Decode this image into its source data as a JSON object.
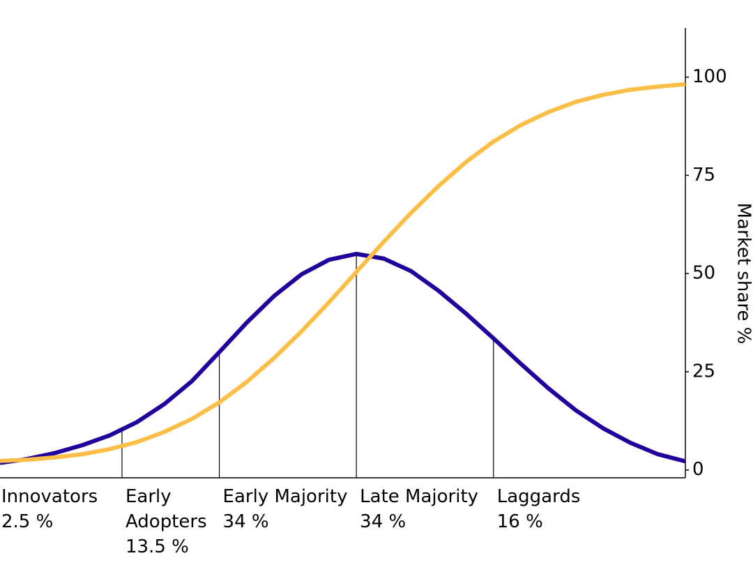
{
  "chart_data": {
    "type": "line",
    "y_axis_label": "Market share %",
    "x": [
      -2.6,
      -2.4,
      -2.2,
      -2.0,
      -1.8,
      -1.6,
      -1.4,
      -1.2,
      -1.0,
      -0.8,
      -0.6,
      -0.4,
      -0.2,
      0,
      0.2,
      0.4,
      0.6,
      0.8,
      1.0,
      1.2,
      1.4,
      1.6,
      1.8,
      2.0,
      2.2,
      2.4
    ],
    "series": [
      {
        "color": "#22009b",
        "values": [
          1.8,
          2.8,
          4.3,
          6.3,
          8.8,
          12.2,
          16.8,
          22.6,
          30.0,
          37.5,
          44.3,
          49.8,
          53.5,
          55.0,
          53.8,
          50.6,
          45.6,
          39.8,
          33.5,
          27.0,
          20.8,
          15.2,
          10.6,
          6.9,
          4.0,
          2.2
        ]
      },
      {
        "color": "#fbbe47",
        "values": [
          2.3,
          2.6,
          3.2,
          4.0,
          5.3,
          7.1,
          9.7,
          13.0,
          17.2,
          22.4,
          28.5,
          35.3,
          42.7,
          50.4,
          58.1,
          65.5,
          72.3,
          78.4,
          83.6,
          87.8,
          91.1,
          93.7,
          95.5,
          96.8,
          97.6,
          98.2
        ]
      }
    ],
    "segments": [
      {
        "name": "Innovators",
        "value": 2.5,
        "value_label": "2.5 %"
      },
      {
        "name": "Early Adopters",
        "value": 13.5,
        "value_label": "13.5 %"
      },
      {
        "name": "Early Majority",
        "value": 34,
        "value_label": "34 %"
      },
      {
        "name": "Late Majority",
        "value": 34,
        "value_label": "34 %"
      },
      {
        "name": "Laggards",
        "value": 16,
        "value_label": "16 %"
      }
    ],
    "boundaries": [
      -1.71,
      -1.0,
      0,
      1.0
    ],
    "xlim": [
      -2.6,
      2.4
    ],
    "ylim": [
      -2,
      112
    ],
    "yticks": [
      0,
      25,
      50,
      75,
      100
    ]
  }
}
